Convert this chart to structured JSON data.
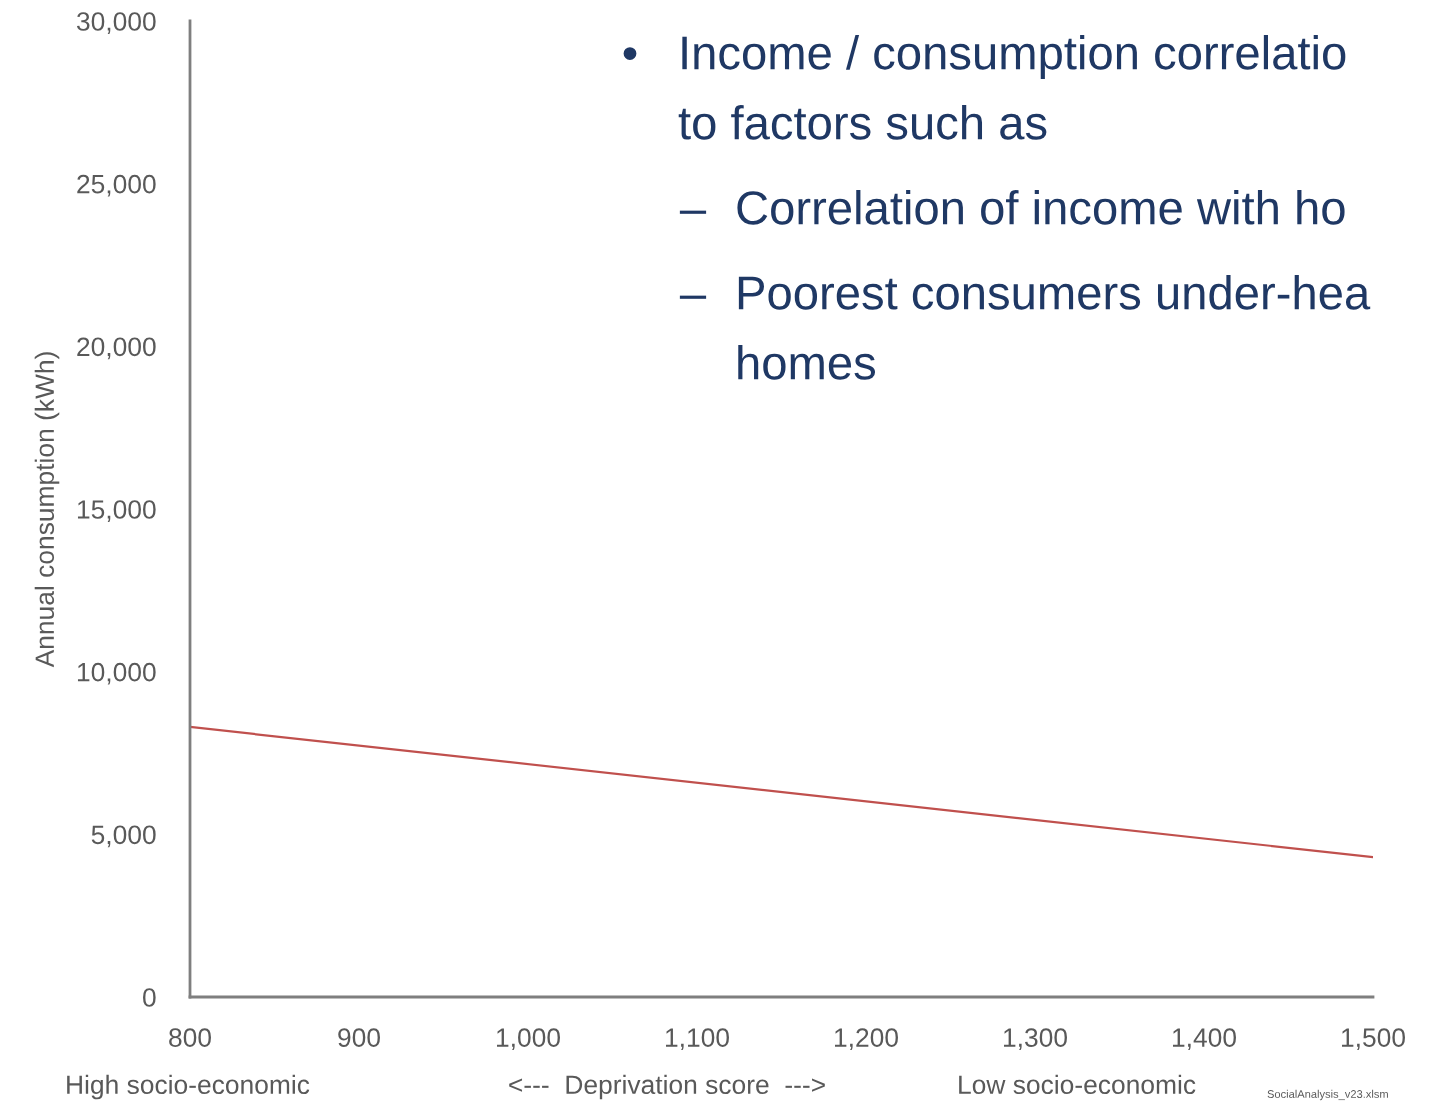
{
  "chart_data": {
    "type": "line",
    "xlabel": "<---  Deprivation score  --->",
    "ylabel": "Annual consumption (kWh)",
    "x": [
      800,
      1500
    ],
    "series": [
      {
        "color": "#c0504d",
        "values": [
          8300,
          4300
        ]
      }
    ],
    "xlim": [
      800,
      1500
    ],
    "xticks": [
      800,
      900,
      {
        "value": 1000,
        "label": "1,000"
      },
      {
        "value": 1100,
        "label": "1,100"
      },
      {
        "value": 1200,
        "label": "1,200"
      },
      {
        "value": 1300,
        "label": "1,300"
      },
      {
        "value": 1400,
        "label": "1,400"
      },
      {
        "value": 1500,
        "label": "1,500"
      }
    ],
    "ylim": [
      0,
      30000
    ],
    "yticks": [
      0,
      {
        "value": 5000,
        "label": "5,000"
      },
      {
        "value": 10000,
        "label": "10,000"
      },
      {
        "value": 15000,
        "label": "15,000"
      },
      {
        "value": 20000,
        "label": "20,000"
      },
      {
        "value": 25000,
        "label": "25,000"
      },
      {
        "value": 30000,
        "label": "30,000"
      }
    ],
    "grid": false,
    "annotations": [
      "•",
      "Income / consumption correlatio",
      "to factors such as",
      "–",
      "Correlation of income with ho",
      "–",
      "Poorest consumers under-hea",
      "homes",
      "High socio-economic",
      "Low socio-economic",
      "SocialAnalysis_v23.xlsm"
    ]
  }
}
